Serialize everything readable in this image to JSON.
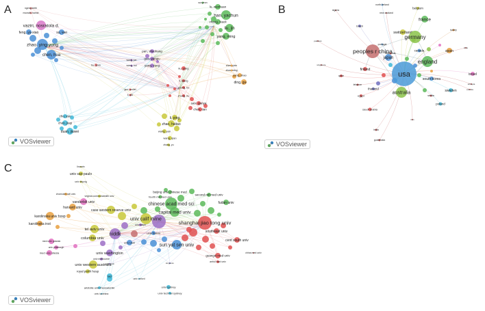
{
  "panels": [
    {
      "letter": "A",
      "badge": "VOSviewer",
      "labels": [
        {
          "t": "ngeng keith",
          "c": "#333"
        },
        {
          "t": "moradis hamid",
          "c": "#333"
        },
        {
          "t": "vaziri, nosratola d.",
          "c": "#333"
        },
        {
          "t": "feng, yu-xiao",
          "c": "#333"
        },
        {
          "t": "su, wei",
          "c": "#333"
        },
        {
          "t": "zhao, ying-yong",
          "c": "#333"
        },
        {
          "t": "chen, hua",
          "c": "#333"
        },
        {
          "t": "hu, yixin",
          "c": "#333"
        },
        {
          "t": "pan, shaokang",
          "c": "#333"
        },
        {
          "t": "guo, yanqiu",
          "c": "#333"
        },
        {
          "t": "yang, yang",
          "c": "#333"
        },
        {
          "t": "wang, jun",
          "c": "#333"
        },
        {
          "t": "wang, hui",
          "c": "#333"
        },
        {
          "t": "liu, yang",
          "c": "#333"
        },
        {
          "t": "lu, wenhuan",
          "c": "#333"
        },
        {
          "t": "han, yachun",
          "c": "#333"
        },
        {
          "t": "zhang, xiaoli",
          "c": "#333"
        },
        {
          "t": "liu, jin",
          "c": "#333"
        },
        {
          "t": "yang, ming",
          "c": "#333"
        },
        {
          "t": "sunyeon",
          "c": "#333"
        },
        {
          "t": "chen, yixin",
          "c": "#333"
        },
        {
          "t": "zhao, ming",
          "c": "#333"
        },
        {
          "t": "yang, shao",
          "c": "#333"
        },
        {
          "t": "ding, guohua",
          "c": "#333"
        },
        {
          "t": "li, qiang",
          "c": "#333"
        },
        {
          "t": "zhang, bo",
          "c": "#333"
        },
        {
          "t": "zhang, nu",
          "c": "#333"
        },
        {
          "t": "sasi, ganya",
          "c": "#333"
        },
        {
          "t": "chen, tian",
          "c": "#333"
        },
        {
          "t": "guo, youfei",
          "c": "#333"
        },
        {
          "t": "li, qiu",
          "c": "#333"
        },
        {
          "t": "li, ping",
          "c": "#333"
        },
        {
          "t": "zhao, haitao",
          "c": "#333"
        },
        {
          "t": "wang, yan",
          "c": "#333"
        },
        {
          "t": "wang, qian",
          "c": "#333"
        },
        {
          "t": "zhang, yu",
          "c": "#333"
        },
        {
          "t": "zhu, yan",
          "c": "#333"
        },
        {
          "t": "chen, jiaqi",
          "c": "#333"
        },
        {
          "t": "duan, jiawei",
          "c": "#333"
        }
      ]
    },
    {
      "letter": "B",
      "badge": "VOSviewer",
      "labels": [
        {
          "t": "nigeria"
        },
        {
          "t": "north ireland"
        },
        {
          "t": "belgium"
        },
        {
          "t": "new zealand"
        },
        {
          "t": "france"
        },
        {
          "t": "turkey"
        },
        {
          "t": "brazil"
        },
        {
          "t": "switzerland"
        },
        {
          "t": "germany"
        },
        {
          "t": "pakistan"
        },
        {
          "t": "portugal"
        },
        {
          "t": "canada"
        },
        {
          "t": "spain"
        },
        {
          "t": "chile"
        },
        {
          "t": "peoples r china"
        },
        {
          "t": "indonesia"
        },
        {
          "t": "japan"
        },
        {
          "t": "england"
        },
        {
          "t": "singapore"
        },
        {
          "t": "usa"
        },
        {
          "t": "qatar"
        },
        {
          "t": "finland"
        },
        {
          "t": "south korea"
        },
        {
          "t": "israel"
        },
        {
          "t": "lebanon"
        },
        {
          "t": "thailand"
        },
        {
          "t": "australia"
        },
        {
          "t": "sweden"
        },
        {
          "t": "ethiopia"
        },
        {
          "t": "estonia"
        },
        {
          "t": "egypt"
        },
        {
          "t": "serbia"
        },
        {
          "t": "poland"
        },
        {
          "t": "saudi arabia"
        },
        {
          "t": "iran"
        },
        {
          "t": "india"
        },
        {
          "t": "guatemala"
        }
      ]
    },
    {
      "letter": "C",
      "badge": "VOSviewer",
      "labels": [
        {
          "t": "linaarin"
        },
        {
          "t": "univ sao paulo"
        },
        {
          "t": "univ leipzig"
        },
        {
          "t": "beijing univ chinese med"
        },
        {
          "t": "second mil med univ"
        },
        {
          "t": "fourth mil med univ"
        },
        {
          "t": "chonnam natl univ"
        },
        {
          "t": "virginia commonwealth univ"
        },
        {
          "t": "harvard univ"
        },
        {
          "t": "vanderbilt univ"
        },
        {
          "t": "chinese acad med sci"
        },
        {
          "t": "fudan univ"
        },
        {
          "t": "karolinska univ hosp"
        },
        {
          "t": "case western reserve univ"
        },
        {
          "t": "capital med univ"
        },
        {
          "t": "karolinska inst"
        },
        {
          "t": "univ calif irvine"
        },
        {
          "t": "shanghai jiao tong univ"
        },
        {
          "t": "univ tokyo"
        },
        {
          "t": "tel aviv univ"
        },
        {
          "t": "niddk"
        },
        {
          "t": "southeast univ"
        },
        {
          "t": "columbia univ"
        },
        {
          "t": "univ florida"
        },
        {
          "t": "cent south univ"
        },
        {
          "t": "med univ gdansk"
        },
        {
          "t": "univ utah"
        },
        {
          "t": "sun yat sen univ"
        },
        {
          "t": "univ pittsburgh"
        },
        {
          "t": "med univ silesia"
        },
        {
          "t": "univ washington"
        },
        {
          "t": "china med univ"
        },
        {
          "t": "guangxi med univ"
        },
        {
          "t": "univ melbourne"
        },
        {
          "t": "anhui med univ"
        },
        {
          "t": "univ western australia"
        },
        {
          "t": "unnorkarin"
        },
        {
          "t": "royal perth hosp"
        },
        {
          "t": "kingiuniv"
        },
        {
          "t": "lacl"
        },
        {
          "t": "univ oxford"
        },
        {
          "t": "univ sydney"
        },
        {
          "t": "aristotle univ thessaloniki"
        },
        {
          "t": "univ technol sydney"
        },
        {
          "t": "univ ioannina"
        }
      ]
    }
  ]
}
